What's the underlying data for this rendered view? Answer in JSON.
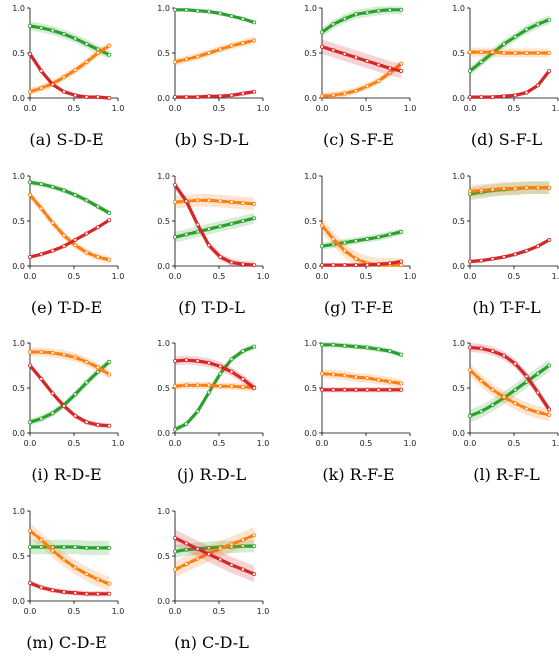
{
  "colors": {
    "green": "#2ca02c",
    "orange": "#ff7f0e",
    "red": "#d62728"
  },
  "chart_data": [
    {
      "type": "line",
      "caption": "(a) S-D-E",
      "xlim": [
        0,
        1
      ],
      "ylim": [
        0,
        1
      ],
      "x_ticks": [
        "0.0",
        "0.5",
        "1.0"
      ],
      "y_ticks": [
        "0.0",
        "0.5",
        "1.0"
      ],
      "series": [
        {
          "color": "green",
          "style": "dotted",
          "band": 0.05,
          "y": [
            0.8,
            0.78,
            0.75,
            0.71,
            0.66,
            0.6,
            0.54,
            0.48
          ]
        },
        {
          "color": "orange",
          "style": "dashed",
          "band": 0.04,
          "y": [
            0.07,
            0.11,
            0.16,
            0.23,
            0.31,
            0.4,
            0.5,
            0.58
          ]
        },
        {
          "color": "red",
          "style": "solid",
          "band": 0.02,
          "y": [
            0.49,
            0.3,
            0.15,
            0.07,
            0.03,
            0.01,
            0.01,
            0.0
          ]
        }
      ]
    },
    {
      "type": "line",
      "caption": "(b) S-D-L",
      "xlim": [
        0,
        1
      ],
      "ylim": [
        0,
        1
      ],
      "x_ticks": [
        "0.0",
        "0.5",
        "1.0"
      ],
      "y_ticks": [
        "0.0",
        "0.5",
        "1.0"
      ],
      "series": [
        {
          "color": "green",
          "style": "dotted",
          "band": 0.02,
          "y": [
            0.98,
            0.98,
            0.97,
            0.96,
            0.94,
            0.91,
            0.88,
            0.84
          ]
        },
        {
          "color": "orange",
          "style": "dashed",
          "band": 0.04,
          "y": [
            0.4,
            0.43,
            0.46,
            0.5,
            0.54,
            0.58,
            0.61,
            0.64
          ]
        },
        {
          "color": "red",
          "style": "solid",
          "band": 0.02,
          "y": [
            0.01,
            0.01,
            0.01,
            0.02,
            0.02,
            0.03,
            0.05,
            0.07
          ]
        }
      ]
    },
    {
      "type": "line",
      "caption": "(c) S-F-E",
      "xlim": [
        0,
        1
      ],
      "ylim": [
        0,
        1
      ],
      "x_ticks": [
        "0.0",
        "0.5",
        "1.0"
      ],
      "y_ticks": [
        "0.0",
        "0.5",
        "1.0"
      ],
      "series": [
        {
          "color": "green",
          "style": "dotted",
          "band": 0.05,
          "y": [
            0.73,
            0.82,
            0.88,
            0.93,
            0.95,
            0.97,
            0.98,
            0.98
          ]
        },
        {
          "color": "orange",
          "style": "dashed",
          "band": 0.04,
          "y": [
            0.02,
            0.03,
            0.05,
            0.08,
            0.13,
            0.19,
            0.28,
            0.38
          ]
        },
        {
          "color": "red",
          "style": "solid",
          "band": 0.08,
          "y": [
            0.57,
            0.53,
            0.49,
            0.45,
            0.41,
            0.37,
            0.33,
            0.3
          ]
        }
      ]
    },
    {
      "type": "line",
      "caption": "(d) S-F-L",
      "xlim": [
        0,
        1
      ],
      "ylim": [
        0,
        1
      ],
      "x_ticks": [
        "0.0",
        "0.5",
        "1.0"
      ],
      "y_ticks": [
        "0.0",
        "0.5",
        "1.0"
      ],
      "series": [
        {
          "color": "green",
          "style": "dotted",
          "band": 0.05,
          "y": [
            0.3,
            0.4,
            0.5,
            0.6,
            0.68,
            0.76,
            0.82,
            0.87
          ]
        },
        {
          "color": "orange",
          "style": "dashed",
          "band": 0.05,
          "y": [
            0.51,
            0.51,
            0.51,
            0.5,
            0.5,
            0.5,
            0.5,
            0.5
          ]
        },
        {
          "color": "red",
          "style": "solid",
          "band": 0.02,
          "y": [
            0.01,
            0.01,
            0.01,
            0.02,
            0.03,
            0.06,
            0.14,
            0.3
          ]
        }
      ]
    },
    {
      "type": "line",
      "caption": "(e) T-D-E",
      "xlim": [
        0,
        1
      ],
      "ylim": [
        0,
        1
      ],
      "x_ticks": [
        "0.0",
        "0.5",
        "1.0"
      ],
      "y_ticks": [
        "0.0",
        "0.5",
        "1.0"
      ],
      "series": [
        {
          "color": "green",
          "style": "dotted",
          "band": 0.03,
          "y": [
            0.93,
            0.91,
            0.88,
            0.84,
            0.79,
            0.73,
            0.66,
            0.59
          ]
        },
        {
          "color": "orange",
          "style": "dashed",
          "band": 0.04,
          "y": [
            0.79,
            0.64,
            0.48,
            0.34,
            0.23,
            0.15,
            0.1,
            0.07
          ]
        },
        {
          "color": "red",
          "style": "solid",
          "band": 0.02,
          "y": [
            0.1,
            0.13,
            0.17,
            0.22,
            0.29,
            0.36,
            0.43,
            0.51
          ]
        }
      ]
    },
    {
      "type": "line",
      "caption": "(f) T-D-L",
      "xlim": [
        0,
        1
      ],
      "ylim": [
        0,
        1
      ],
      "x_ticks": [
        "0.0",
        "0.5",
        "1.0"
      ],
      "y_ticks": [
        "0.0",
        "0.5",
        "1.0"
      ],
      "series": [
        {
          "color": "green",
          "style": "dotted",
          "band": 0.06,
          "y": [
            0.32,
            0.35,
            0.38,
            0.41,
            0.44,
            0.47,
            0.5,
            0.53
          ]
        },
        {
          "color": "orange",
          "style": "dashed",
          "band": 0.07,
          "y": [
            0.71,
            0.72,
            0.73,
            0.73,
            0.72,
            0.71,
            0.7,
            0.69
          ]
        },
        {
          "color": "red",
          "style": "solid",
          "band": 0.04,
          "y": [
            0.9,
            0.72,
            0.46,
            0.23,
            0.1,
            0.04,
            0.02,
            0.01
          ]
        }
      ]
    },
    {
      "type": "line",
      "caption": "(g) T-F-E",
      "xlim": [
        0,
        1
      ],
      "ylim": [
        0,
        1
      ],
      "x_ticks": [
        "0.0",
        "0.5",
        "1.0"
      ],
      "y_ticks": [
        "0.0",
        "0.5",
        "1.0"
      ],
      "series": [
        {
          "color": "green",
          "style": "dotted",
          "band": 0.04,
          "y": [
            0.22,
            0.24,
            0.26,
            0.28,
            0.3,
            0.32,
            0.35,
            0.38
          ]
        },
        {
          "color": "orange",
          "style": "dashed",
          "band": 0.08,
          "y": [
            0.45,
            0.3,
            0.17,
            0.08,
            0.03,
            0.01,
            0.01,
            0.01
          ]
        },
        {
          "color": "red",
          "style": "solid",
          "band": 0.02,
          "y": [
            0.01,
            0.01,
            0.01,
            0.01,
            0.01,
            0.02,
            0.03,
            0.05
          ]
        }
      ]
    },
    {
      "type": "line",
      "caption": "(h) T-F-L",
      "xlim": [
        0,
        1
      ],
      "ylim": [
        0,
        1
      ],
      "x_ticks": [
        "0.0",
        "0.5",
        "1.0"
      ],
      "y_ticks": [
        "0.0",
        "0.5",
        "1.0"
      ],
      "series": [
        {
          "color": "green",
          "style": "dotted",
          "band": 0.07,
          "y": [
            0.8,
            0.82,
            0.84,
            0.85,
            0.86,
            0.87,
            0.87,
            0.87
          ]
        },
        {
          "color": "orange",
          "style": "dashed",
          "band": 0.07,
          "y": [
            0.83,
            0.84,
            0.85,
            0.86,
            0.86,
            0.87,
            0.87,
            0.87
          ]
        },
        {
          "color": "red",
          "style": "solid",
          "band": 0.02,
          "y": [
            0.05,
            0.06,
            0.08,
            0.1,
            0.13,
            0.17,
            0.22,
            0.29
          ]
        }
      ]
    },
    {
      "type": "line",
      "caption": "(i) R-D-E",
      "xlim": [
        0,
        1
      ],
      "ylim": [
        0,
        1
      ],
      "x_ticks": [
        "0.0",
        "0.5",
        "1.0"
      ],
      "y_ticks": [
        "0.0",
        "0.5",
        "1.0"
      ],
      "series": [
        {
          "color": "green",
          "style": "dotted",
          "band": 0.04,
          "y": [
            0.12,
            0.16,
            0.22,
            0.31,
            0.43,
            0.56,
            0.68,
            0.79
          ]
        },
        {
          "color": "orange",
          "style": "dashed",
          "band": 0.05,
          "y": [
            0.9,
            0.9,
            0.89,
            0.87,
            0.84,
            0.79,
            0.73,
            0.65
          ]
        },
        {
          "color": "red",
          "style": "solid",
          "band": 0.03,
          "y": [
            0.75,
            0.6,
            0.44,
            0.3,
            0.19,
            0.12,
            0.09,
            0.08
          ]
        }
      ]
    },
    {
      "type": "line",
      "caption": "(j) R-D-L",
      "xlim": [
        0,
        1
      ],
      "ylim": [
        0,
        1
      ],
      "x_ticks": [
        "0.0",
        "0.5",
        "1.0"
      ],
      "y_ticks": [
        "0.0",
        "0.5",
        "1.0"
      ],
      "series": [
        {
          "color": "green",
          "style": "dotted",
          "band": 0.03,
          "y": [
            0.04,
            0.1,
            0.24,
            0.45,
            0.66,
            0.82,
            0.91,
            0.96
          ]
        },
        {
          "color": "orange",
          "style": "dashed",
          "band": 0.04,
          "y": [
            0.52,
            0.53,
            0.53,
            0.53,
            0.52,
            0.52,
            0.51,
            0.51
          ]
        },
        {
          "color": "red",
          "style": "solid",
          "band": 0.05,
          "y": [
            0.8,
            0.81,
            0.8,
            0.78,
            0.74,
            0.68,
            0.6,
            0.5
          ]
        }
      ]
    },
    {
      "type": "line",
      "caption": "(k) R-F-E",
      "xlim": [
        0,
        1
      ],
      "ylim": [
        0,
        1
      ],
      "x_ticks": [
        "0.0",
        "0.5",
        "1.0"
      ],
      "y_ticks": [
        "0.0",
        "0.5",
        "1.0"
      ],
      "series": [
        {
          "color": "green",
          "style": "dotted",
          "band": 0.03,
          "y": [
            0.98,
            0.98,
            0.97,
            0.96,
            0.95,
            0.93,
            0.91,
            0.87
          ]
        },
        {
          "color": "orange",
          "style": "dashed",
          "band": 0.05,
          "y": [
            0.66,
            0.65,
            0.64,
            0.62,
            0.61,
            0.59,
            0.57,
            0.55
          ]
        },
        {
          "color": "red",
          "style": "solid",
          "band": 0.03,
          "y": [
            0.48,
            0.48,
            0.48,
            0.48,
            0.48,
            0.48,
            0.48,
            0.48
          ]
        }
      ]
    },
    {
      "type": "line",
      "caption": "(l) R-F-L",
      "xlim": [
        0,
        1
      ],
      "ylim": [
        0,
        1
      ],
      "x_ticks": [
        "0.0",
        "0.5",
        "1.0"
      ],
      "y_ticks": [
        "0.0",
        "0.5",
        "1.0"
      ],
      "series": [
        {
          "color": "green",
          "style": "dotted",
          "band": 0.07,
          "y": [
            0.19,
            0.24,
            0.31,
            0.39,
            0.48,
            0.57,
            0.66,
            0.75
          ]
        },
        {
          "color": "orange",
          "style": "dashed",
          "band": 0.07,
          "y": [
            0.7,
            0.58,
            0.48,
            0.4,
            0.33,
            0.27,
            0.23,
            0.2
          ]
        },
        {
          "color": "red",
          "style": "solid",
          "band": 0.05,
          "y": [
            0.95,
            0.94,
            0.91,
            0.86,
            0.77,
            0.63,
            0.45,
            0.26
          ]
        }
      ]
    },
    {
      "type": "line",
      "caption": "(m) C-D-E",
      "xlim": [
        0,
        1
      ],
      "ylim": [
        0,
        1
      ],
      "x_ticks": [
        "0.0",
        "0.5",
        "1.0"
      ],
      "y_ticks": [
        "0.0",
        "0.5",
        "1.0"
      ],
      "series": [
        {
          "color": "green",
          "style": "dotted",
          "band": 0.08,
          "y": [
            0.6,
            0.6,
            0.6,
            0.6,
            0.6,
            0.59,
            0.59,
            0.59
          ]
        },
        {
          "color": "orange",
          "style": "dashed",
          "band": 0.08,
          "y": [
            0.78,
            0.68,
            0.56,
            0.46,
            0.37,
            0.3,
            0.24,
            0.19
          ]
        },
        {
          "color": "red",
          "style": "solid",
          "band": 0.03,
          "y": [
            0.2,
            0.15,
            0.12,
            0.1,
            0.09,
            0.08,
            0.08,
            0.08
          ]
        }
      ]
    },
    {
      "type": "line",
      "caption": "(n) C-D-L",
      "xlim": [
        0,
        1
      ],
      "ylim": [
        0,
        1
      ],
      "x_ticks": [
        "0.0",
        "0.5",
        "1.0"
      ],
      "y_ticks": [
        "0.0",
        "0.5",
        "1.0"
      ],
      "series": [
        {
          "color": "green",
          "style": "dotted",
          "band": 0.07,
          "y": [
            0.55,
            0.57,
            0.58,
            0.59,
            0.6,
            0.6,
            0.61,
            0.61
          ]
        },
        {
          "color": "orange",
          "style": "dashed",
          "band": 0.09,
          "y": [
            0.35,
            0.41,
            0.47,
            0.53,
            0.58,
            0.63,
            0.68,
            0.73
          ]
        },
        {
          "color": "red",
          "style": "solid",
          "band": 0.09,
          "y": [
            0.7,
            0.64,
            0.58,
            0.52,
            0.46,
            0.4,
            0.35,
            0.3
          ]
        }
      ]
    }
  ]
}
